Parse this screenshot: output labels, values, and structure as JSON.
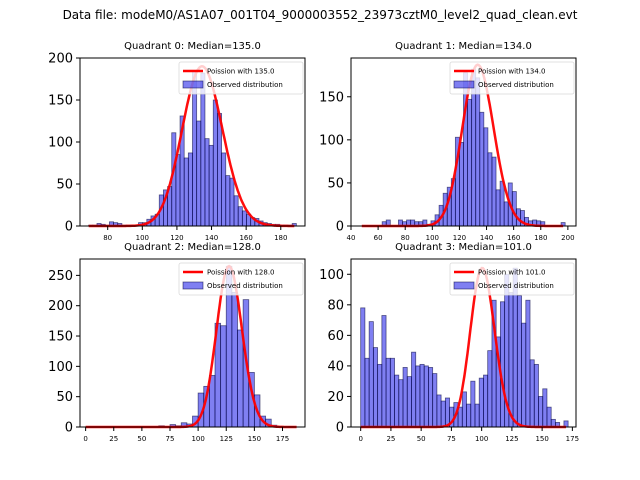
{
  "suptitle": "Data file: modeM0/AS1A07_001T04_9000003552_23973cztM0_level2_quad_clean.evt",
  "chart_data": [
    {
      "type": "bar",
      "title": "Quadrant 0: Median=135.0",
      "legend": {
        "position": "top-right",
        "entries": [
          "Poission with 135.0",
          "Observed distribution"
        ]
      },
      "xlim": [
        64,
        194
      ],
      "ylim": [
        0,
        200
      ],
      "xticks": [
        80,
        100,
        120,
        140,
        160,
        180
      ],
      "yticks": [
        0,
        50,
        100,
        150,
        200
      ],
      "median": 135.0,
      "poisson_peak": 190,
      "bin_width": 2.4,
      "bins_start": [
        69.0,
        71.4,
        73.8,
        76.2,
        78.6,
        81.0,
        83.4,
        85.8,
        88.2,
        90.6,
        93.0,
        95.4,
        97.8,
        100.2,
        102.6,
        105.0,
        107.4,
        109.8,
        112.2,
        114.6,
        117.0,
        119.4,
        121.8,
        124.2,
        126.6,
        129.0,
        131.4,
        133.8,
        136.2,
        138.6,
        141.0,
        143.4,
        145.8,
        148.2,
        150.6,
        153.0,
        155.4,
        157.8,
        160.2,
        162.6,
        165.0,
        167.4,
        169.8,
        172.2,
        174.6,
        177.0,
        179.4,
        181.8,
        184.2,
        186.6
      ],
      "values": [
        1,
        1,
        3,
        2,
        1,
        5,
        4,
        3,
        1,
        1,
        1,
        1,
        4,
        4,
        8,
        12,
        14,
        37,
        43,
        47,
        111,
        85,
        131,
        81,
        87,
        185,
        125,
        182,
        104,
        96,
        150,
        134,
        87,
        60,
        57,
        36,
        23,
        18,
        14,
        10,
        9,
        6,
        4,
        3,
        2,
        2,
        1,
        1,
        1,
        3
      ]
    },
    {
      "type": "bar",
      "title": "Quadrant 1: Median=134.0",
      "legend": {
        "position": "top-right",
        "entries": [
          "Poission with 134.0",
          "Observed distribution"
        ]
      },
      "xlim": [
        40,
        206
      ],
      "ylim": [
        0,
        195
      ],
      "xticks": [
        40,
        60,
        80,
        100,
        120,
        140,
        160,
        180,
        200
      ],
      "yticks": [
        0,
        50,
        100,
        150
      ],
      "median": 134.0,
      "poisson_peak": 187,
      "bin_width": 3.0,
      "bins_start": [
        48,
        51,
        54,
        57,
        60,
        63,
        66,
        69,
        72,
        75,
        78,
        81,
        84,
        87,
        90,
        93,
        96,
        99,
        102,
        105,
        108,
        111,
        114,
        117,
        120,
        123,
        126,
        129,
        132,
        135,
        138,
        141,
        144,
        147,
        150,
        153,
        156,
        159,
        162,
        165,
        168,
        171,
        174,
        177,
        180,
        183,
        186,
        189,
        192,
        195
      ],
      "values": [
        0,
        0,
        0,
        0,
        0,
        5,
        7,
        0,
        0,
        7,
        5,
        7,
        7,
        5,
        5,
        7,
        2,
        6,
        13,
        24,
        38,
        45,
        55,
        103,
        97,
        178,
        147,
        182,
        172,
        132,
        114,
        85,
        80,
        42,
        52,
        28,
        50,
        40,
        20,
        18,
        10,
        6,
        7,
        6,
        5,
        0,
        0,
        0,
        0,
        4
      ]
    },
    {
      "type": "bar",
      "title": "Quadrant 2: Median=128.0",
      "legend": {
        "position": "top-right",
        "entries": [
          "Poission with 128.0",
          "Observed distribution"
        ]
      },
      "xlim": [
        -5,
        195
      ],
      "ylim": [
        0,
        277
      ],
      "xticks": [
        0,
        25,
        50,
        75,
        100,
        125,
        150,
        175
      ],
      "yticks": [
        0,
        50,
        100,
        150,
        200,
        250
      ],
      "median": 128.0,
      "poisson_peak": 265,
      "bin_width": 5.0,
      "bins_start": [
        0,
        5,
        10,
        15,
        20,
        25,
        30,
        35,
        40,
        45,
        50,
        55,
        60,
        65,
        70,
        75,
        80,
        85,
        90,
        95,
        100,
        105,
        110,
        115,
        120,
        125,
        130,
        135,
        140,
        145,
        150,
        155,
        160,
        165,
        170,
        175,
        180,
        185
      ],
      "values": [
        0,
        0,
        0,
        0,
        0,
        0,
        0,
        0,
        0,
        0,
        0,
        0,
        0,
        2,
        0,
        4,
        2,
        7,
        5,
        18,
        56,
        67,
        85,
        171,
        167,
        265,
        222,
        160,
        210,
        90,
        53,
        18,
        13,
        3,
        1,
        0,
        1,
        0
      ]
    },
    {
      "type": "bar",
      "title": "Quadrant 3: Median=101.0",
      "legend": {
        "position": "top-right",
        "entries": [
          "Poission with 101.0",
          "Observed distribution"
        ]
      },
      "xlim": [
        -8,
        178
      ],
      "ylim": [
        0,
        110
      ],
      "xticks": [
        0,
        25,
        50,
        75,
        100,
        125,
        150,
        175
      ],
      "yticks": [
        0,
        20,
        40,
        60,
        80,
        100
      ],
      "median": 101.0,
      "poisson_peak": 104,
      "bin_width": 3.5,
      "bins_start": [
        0,
        3.5,
        7,
        10.5,
        14,
        17.5,
        21,
        24.5,
        28,
        31.5,
        35,
        38.5,
        42,
        45.5,
        49,
        52.5,
        56,
        59.5,
        63,
        66.5,
        70,
        73.5,
        77,
        80.5,
        84,
        87.5,
        91,
        94.5,
        98,
        101.5,
        105,
        108.5,
        112,
        115.5,
        119,
        122.5,
        126,
        129.5,
        133,
        136.5,
        140,
        143.5,
        147,
        150.5,
        154,
        157.5,
        161,
        164.5,
        168
      ],
      "values": [
        78,
        45,
        69,
        52,
        41,
        73,
        45,
        45,
        34,
        31,
        39,
        33,
        49,
        40,
        41,
        40,
        39,
        35,
        21,
        17,
        19,
        13,
        16,
        13,
        23,
        15,
        30,
        15,
        32,
        34,
        50,
        83,
        59,
        82,
        100,
        88,
        104,
        86,
        68,
        83,
        44,
        41,
        20,
        25,
        13,
        5,
        3,
        0,
        4
      ]
    }
  ]
}
